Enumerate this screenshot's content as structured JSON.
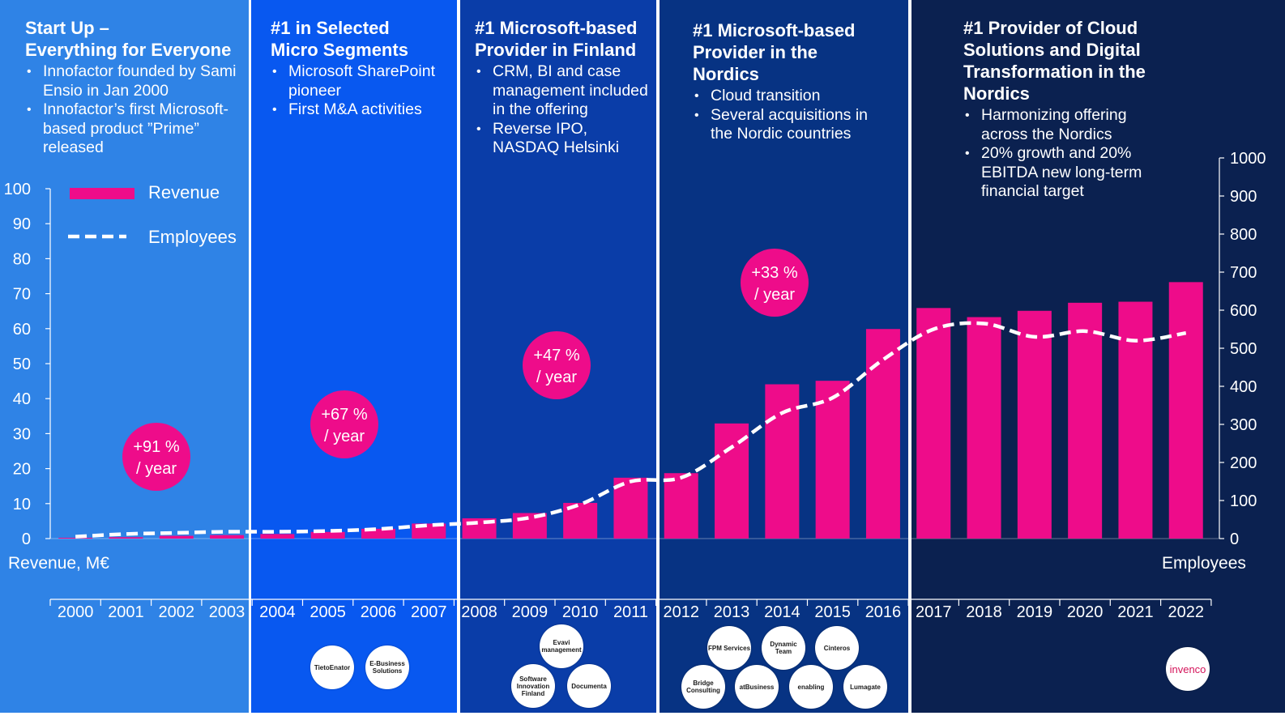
{
  "eras": [
    {
      "heading": "Start Up –\nEverything for Everyone",
      "bullets": [
        "Innofactor founded by Sami Ensio in Jan 2000",
        "Innofactor’s first Microsoft-based product ”Prime” released"
      ]
    },
    {
      "heading": "#1 in Selected\nMicro Segments",
      "bullets": [
        "Microsoft SharePoint pioneer",
        "First M&A activities"
      ]
    },
    {
      "heading": "#1 Microsoft-based\nProvider in Finland",
      "bullets": [
        "CRM, BI and case management included in the offering",
        "Reverse IPO, NASDAQ Helsinki"
      ]
    },
    {
      "heading": "#1 Microsoft-based\nProvider in the\nNordics",
      "bullets": [
        "Cloud transition",
        "Several acquisitions in the Nordic countries"
      ]
    },
    {
      "heading": "#1 Provider of Cloud\nSolutions and Digital\nTransformation in the\nNordics",
      "bullets": [
        "Harmonizing offering across the Nordics",
        "20% growth and 20% EBITDA new long-term financial target"
      ]
    }
  ],
  "growth_badges": [
    {
      "line1": "+91 %",
      "line2": "/ year"
    },
    {
      "line1": "+67 %",
      "line2": "/ year"
    },
    {
      "line1": "+47 %",
      "line2": "/ year"
    },
    {
      "line1": "+33 %",
      "line2": "/ year"
    }
  ],
  "legend": {
    "revenue": "Revenue",
    "employees": "Employees"
  },
  "axis_titles": {
    "left": "Revenue, M€",
    "right": "Employees"
  },
  "logos": [
    "TietoEnator",
    "E-Business Solutions",
    "Evavi management",
    "Software Innovation Finland",
    "Documenta",
    "FPM Services",
    "Dynamic Team",
    "Cinteros",
    "Bridge Consulting",
    "atBusiness",
    "enabling",
    "Lumagate",
    "invenco"
  ],
  "colors": {
    "revenue": "#ee0c8a",
    "employees": "#ffffff",
    "era1": "#2f83e6",
    "era2": "#0858f0",
    "era3": "#0a3da8",
    "era4": "#073383",
    "era5": "#0b2150"
  },
  "chart_data": {
    "type": "bar",
    "categories": [
      "2000",
      "2001",
      "2002",
      "2003",
      "2004",
      "2005",
      "2006",
      "2007",
      "2008",
      "2009",
      "2010",
      "2011",
      "2012",
      "2013",
      "2014",
      "2015",
      "2016",
      "2017",
      "2018",
      "2019",
      "2020",
      "2021",
      "2022"
    ],
    "series": [
      {
        "name": "Revenue",
        "type": "bar",
        "axis": "left",
        "values": [
          0.1,
          0.4,
          0.8,
          1.0,
          1.3,
          1.9,
          2.8,
          4.3,
          5.8,
          7.3,
          10.2,
          17.4,
          18.7,
          32.9,
          44.1,
          45.1,
          59.9,
          65.9,
          63.3,
          65.1,
          67.4,
          67.7,
          73.3
        ]
      },
      {
        "name": "Employees",
        "type": "line",
        "style": "dashed",
        "axis": "right",
        "values": [
          5,
          12,
          15,
          18,
          18,
          20,
          25,
          35,
          42,
          55,
          90,
          150,
          160,
          240,
          330,
          370,
          470,
          550,
          565,
          530,
          545,
          520,
          540
        ]
      }
    ],
    "ylabel": "Revenue, M€",
    "y2label": "Employees",
    "ylim": [
      0,
      100
    ],
    "y2lim": [
      0,
      1000
    ],
    "yticks": [
      0,
      10,
      20,
      30,
      40,
      50,
      60,
      70,
      80,
      90,
      100
    ],
    "y2ticks": [
      0,
      100,
      200,
      300,
      400,
      500,
      600,
      700,
      800,
      900,
      1000
    ],
    "legend_position": "top-left"
  }
}
